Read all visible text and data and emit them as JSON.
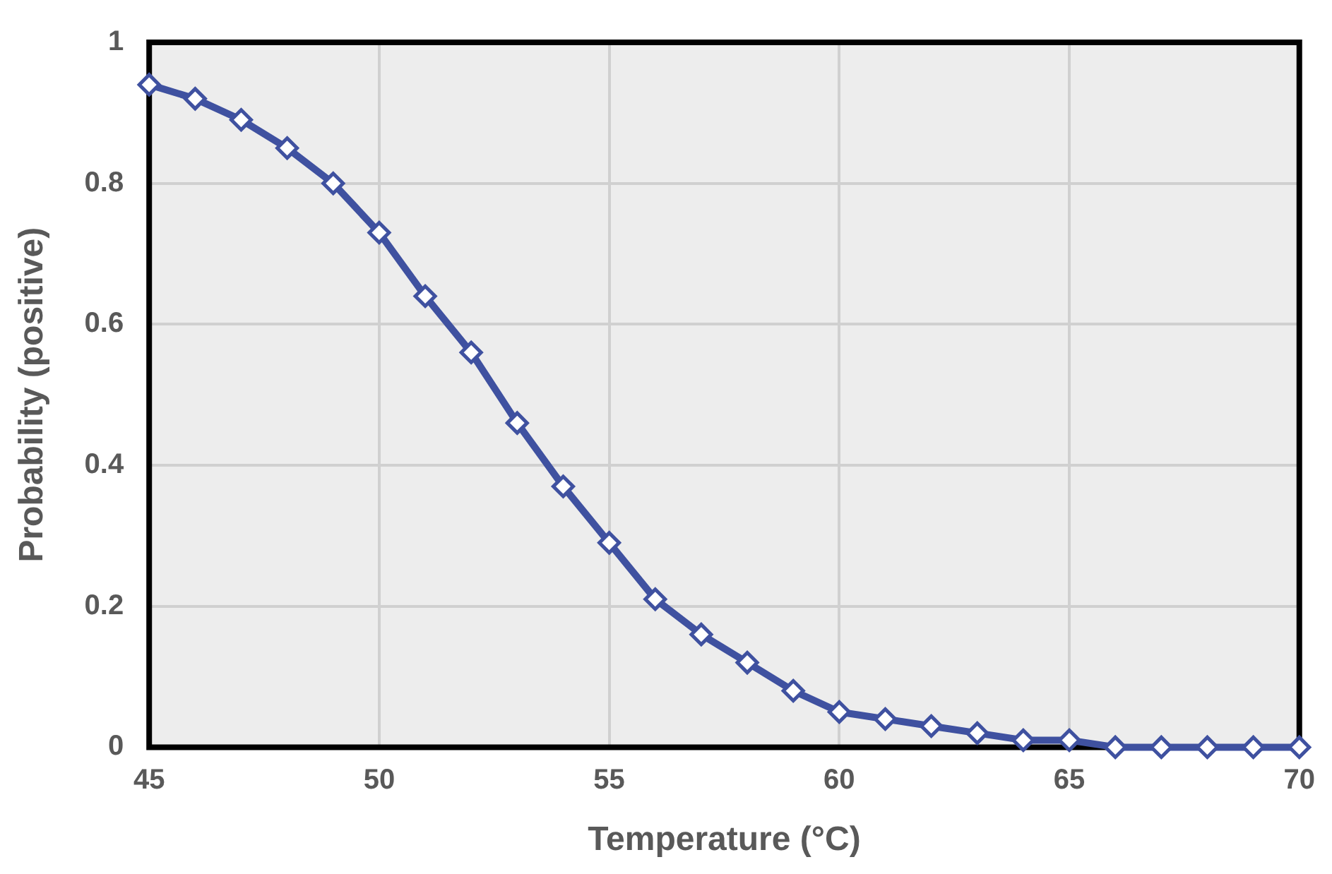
{
  "chart_data": {
    "type": "line",
    "xlabel": "Temperature (°C)",
    "ylabel": "Probability (positive)",
    "x": [
      45,
      46,
      47,
      48,
      49,
      50,
      51,
      52,
      53,
      54,
      55,
      56,
      57,
      58,
      59,
      60,
      61,
      62,
      63,
      64,
      65,
      66,
      67,
      68,
      69,
      70
    ],
    "series": [
      {
        "color": "#3f51a0",
        "values": [
          0.94,
          0.92,
          0.89,
          0.85,
          0.8,
          0.73,
          0.64,
          0.56,
          0.46,
          0.37,
          0.29,
          0.21,
          0.16,
          0.12,
          0.08,
          0.05,
          0.04,
          0.03,
          0.02,
          0.01,
          0.01,
          0,
          0,
          0,
          0,
          0
        ]
      }
    ],
    "xlim": [
      45,
      70
    ],
    "xticks": [
      45,
      50,
      55,
      60,
      65,
      70
    ],
    "ylim": [
      0,
      1
    ],
    "yticks": [
      0,
      0.2,
      0.4,
      0.6,
      0.8,
      1
    ],
    "grid": true,
    "legend": false,
    "marker": "diamond",
    "line_style": "solid"
  }
}
